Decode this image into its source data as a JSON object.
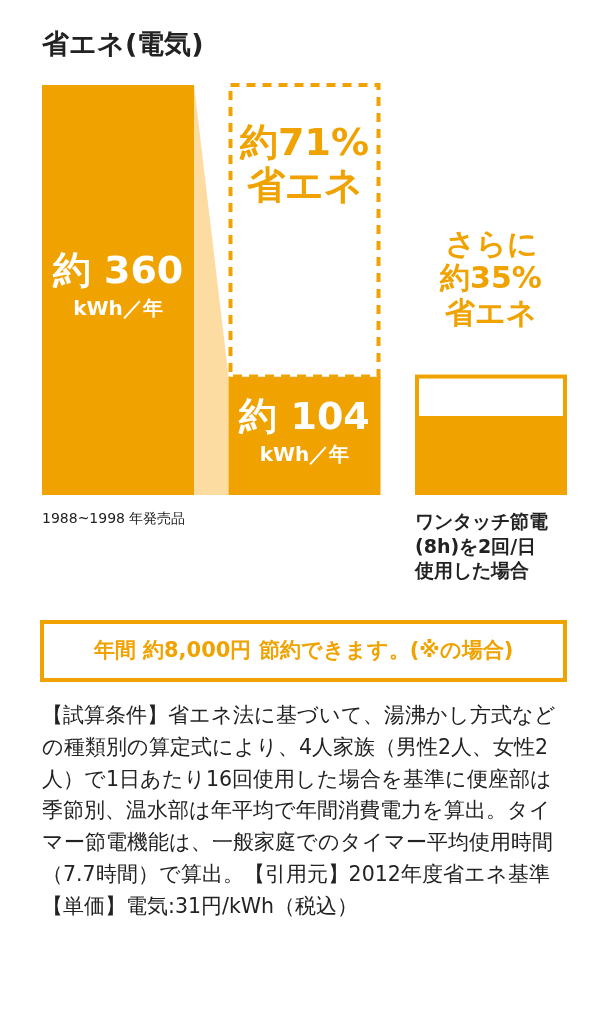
{
  "chart_data": {
    "type": "bar",
    "stacked": true,
    "title": "省エネ(電気)",
    "categories": [
      "1988~1998 年発売品",
      null,
      "ワンタッチ節電(8h)を2回/日使用した場合"
    ],
    "series": [
      {
        "color": "#f0a300",
        "values": [
          360,
          104,
          67.6
        ],
        "value_labels": [
          "約 360 kWh／年",
          "約 104 kWh／年",
          null
        ]
      },
      {
        "color": "#f0a300",
        "line_style": "dashed",
        "values": [
          null,
          256,
          null
        ]
      },
      {
        "color": "#f0a300",
        "line_style": "solid",
        "values": [
          null,
          null,
          36.4
        ]
      }
    ],
    "annotations": [
      "約71%省エネ",
      "さらに約35%省エネ",
      "年間 約8,000円 節約できます。(※の場合)",
      "【試算条件】省エネ法に基づいて、湯沸かし方式などの種類別の算定式により、4人家族（男性2人、女性2人）で1日あたり16回使用した場合を基準に便座部は季節別、温水部は年平均で年間消費電力を算出。タイマー節電機能は、一般家庭でのタイマー平均使用時間（7.7時間）で算出。【引用元】2012年度省エネ基準【単価】電気:31円/kWh（税込）"
    ]
  }
}
